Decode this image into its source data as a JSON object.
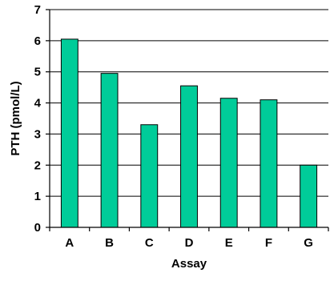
{
  "chart_data": {
    "type": "bar",
    "categories": [
      "A",
      "B",
      "C",
      "D",
      "E",
      "F",
      "G"
    ],
    "values": [
      6.05,
      4.95,
      3.3,
      4.55,
      4.15,
      4.1,
      2.0
    ],
    "xlabel": "Assay",
    "ylabel": "PTH (pmol/L)",
    "ylim": [
      0,
      7
    ],
    "yticks": [
      "0",
      "1",
      "2",
      "3",
      "4",
      "5",
      "6",
      "7"
    ],
    "grid": true,
    "legend": "none",
    "bar_color": "#00CC99"
  }
}
